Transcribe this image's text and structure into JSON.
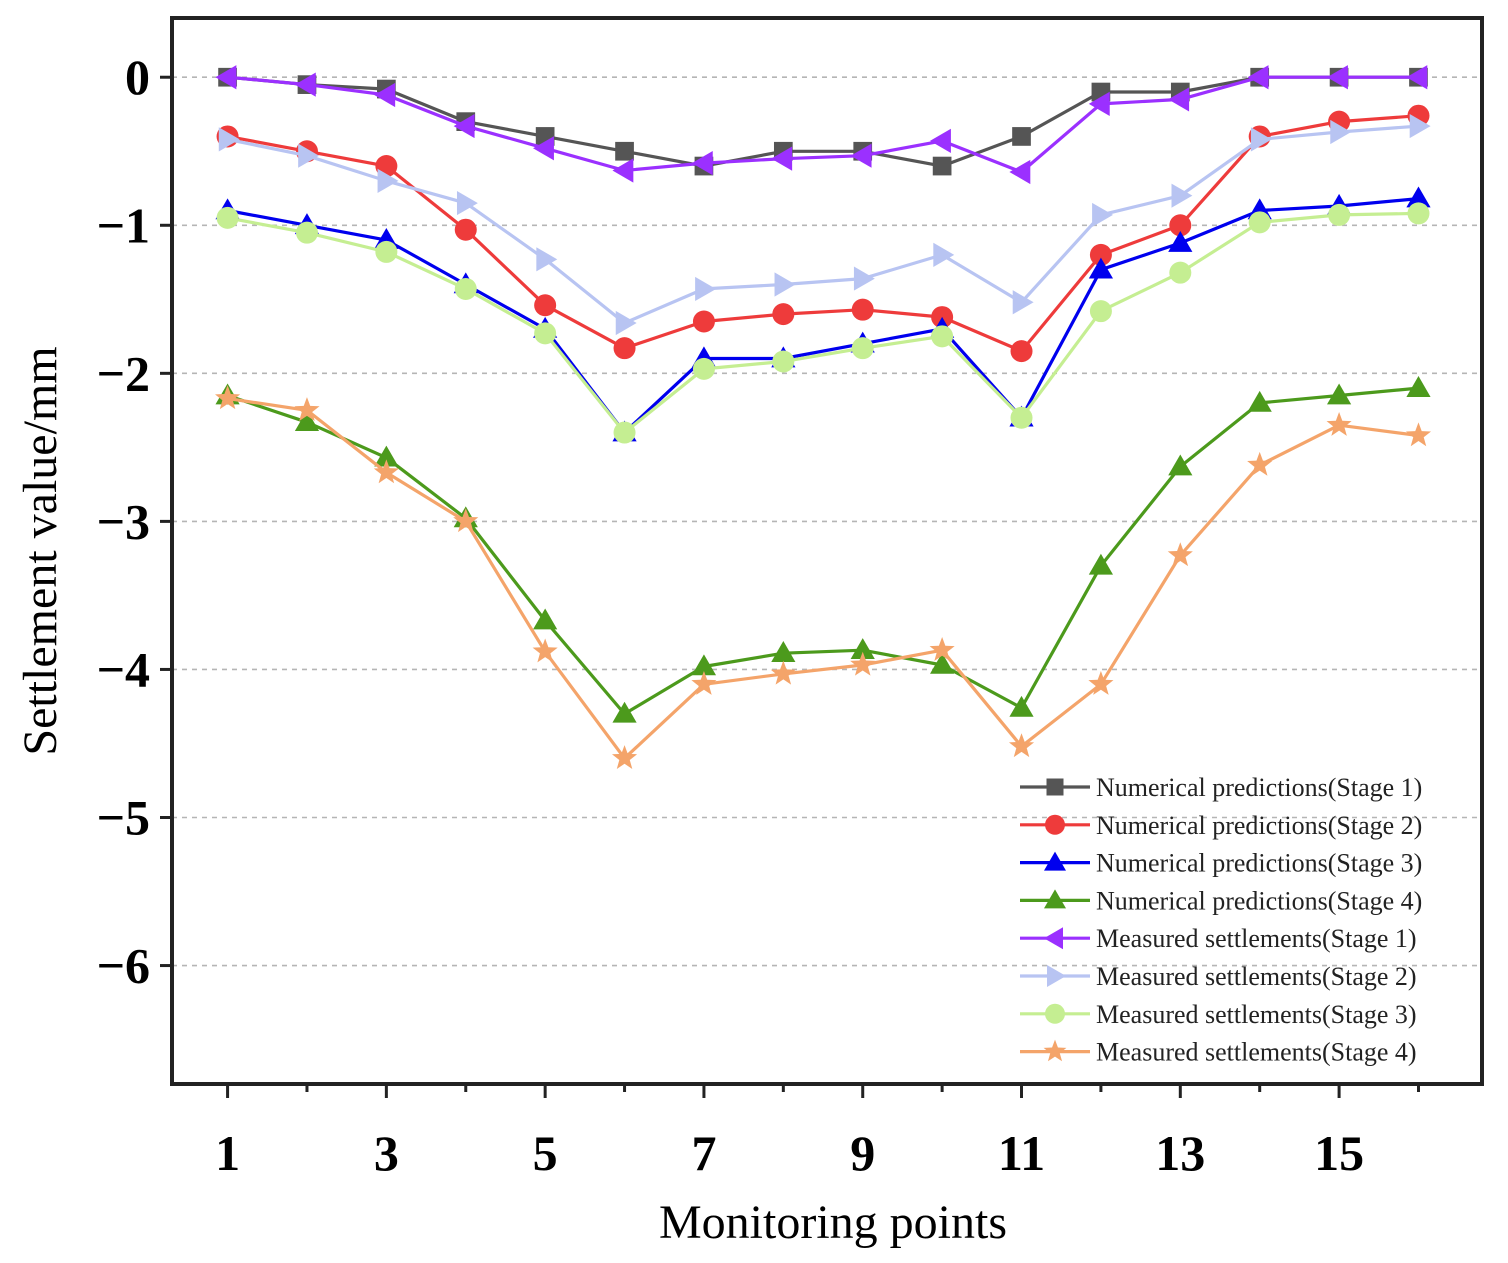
{
  "chart_data": {
    "type": "line",
    "title": "",
    "xlabel": "Monitoring points",
    "ylabel": "Settlement value/mm",
    "x": [
      1,
      2,
      3,
      4,
      5,
      6,
      7,
      8,
      9,
      10,
      11,
      12,
      13,
      14,
      15,
      16
    ],
    "xlim": [
      0.3,
      16.8
    ],
    "ylim": [
      -6.8,
      0.4
    ],
    "x_ticks": [
      1,
      3,
      5,
      7,
      9,
      11,
      13,
      15
    ],
    "x_tick_labels": [
      "1",
      "3",
      "5",
      "7",
      "9",
      "11",
      "13",
      "15"
    ],
    "y_ticks": [
      0,
      -1,
      -2,
      -3,
      -4,
      -5,
      -6
    ],
    "y_tick_labels": [
      "0",
      "−1",
      "−2",
      "−3",
      "−4",
      "−5",
      "−6"
    ],
    "grid": "horizontal dashed",
    "legend_position": "bottom-right",
    "series": [
      {
        "name": "Numerical predictions(Stage 1)",
        "color": "#555555",
        "marker": "square",
        "values": [
          0,
          -0.05,
          -0.08,
          -0.3,
          -0.4,
          -0.5,
          -0.6,
          -0.5,
          -0.5,
          -0.6,
          -0.4,
          -0.1,
          -0.1,
          0,
          0,
          0
        ]
      },
      {
        "name": "Numerical predictions(Stage 2)",
        "color": "#ee3b3b",
        "marker": "circle",
        "values": [
          -0.4,
          -0.5,
          -0.6,
          -1.03,
          -1.54,
          -1.83,
          -1.65,
          -1.6,
          -1.57,
          -1.62,
          -1.85,
          -1.2,
          -1.0,
          -0.4,
          -0.3,
          -0.26
        ]
      },
      {
        "name": "Numerical predictions(Stage 3)",
        "color": "#0000ee",
        "marker": "triangle-up",
        "values": [
          -0.9,
          -1.0,
          -1.1,
          -1.4,
          -1.7,
          -2.4,
          -1.9,
          -1.9,
          -1.8,
          -1.7,
          -2.3,
          -1.3,
          -1.12,
          -0.9,
          -0.87,
          -0.82
        ]
      },
      {
        "name": "Numerical predictions(Stage 4)",
        "color": "#4c9a1c",
        "marker": "triangle-up",
        "values": [
          -2.15,
          -2.33,
          -2.57,
          -2.98,
          -3.67,
          -4.3,
          -3.98,
          -3.89,
          -3.87,
          -3.97,
          -4.26,
          -3.3,
          -2.63,
          -2.2,
          -2.15,
          -2.1
        ]
      },
      {
        "name": "Measured settlements(Stage 1)",
        "color": "#9b30ff",
        "marker": "triangle-left",
        "values": [
          0,
          -0.05,
          -0.12,
          -0.33,
          -0.48,
          -0.63,
          -0.58,
          -0.55,
          -0.53,
          -0.43,
          -0.64,
          -0.18,
          -0.15,
          0,
          0,
          0
        ]
      },
      {
        "name": "Measured settlements(Stage 2)",
        "color": "#b8c4f2",
        "marker": "triangle-right",
        "values": [
          -0.42,
          -0.53,
          -0.7,
          -0.85,
          -1.23,
          -1.66,
          -1.43,
          -1.4,
          -1.36,
          -1.2,
          -1.52,
          -0.93,
          -0.8,
          -0.42,
          -0.37,
          -0.33
        ]
      },
      {
        "name": "Measured settlements(Stage 3)",
        "color": "#c5ee92",
        "marker": "circle",
        "values": [
          -0.95,
          -1.05,
          -1.18,
          -1.43,
          -1.73,
          -2.4,
          -1.97,
          -1.92,
          -1.83,
          -1.75,
          -2.3,
          -1.58,
          -1.32,
          -0.98,
          -0.93,
          -0.92
        ]
      },
      {
        "name": "Measured settlements(Stage 4)",
        "color": "#f4a46a",
        "marker": "star",
        "values": [
          -2.17,
          -2.25,
          -2.67,
          -3.0,
          -3.88,
          -4.6,
          -4.1,
          -4.03,
          -3.97,
          -3.87,
          -4.52,
          -4.1,
          -3.23,
          -2.62,
          -2.35,
          -2.42
        ]
      }
    ]
  }
}
